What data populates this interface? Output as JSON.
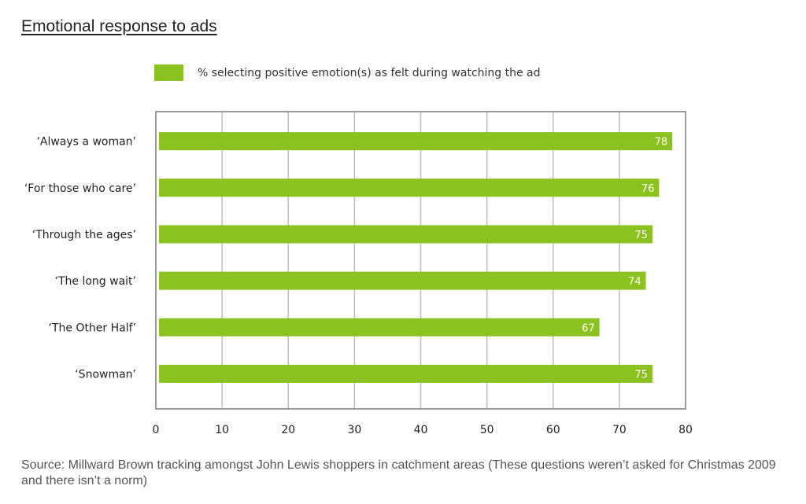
{
  "title": "Emotional response to ads",
  "legend": {
    "label": "% selecting positive emotion(s) as felt during watching the ad"
  },
  "colors": {
    "bar": "#8cc21f",
    "grid": "#bdbdbd",
    "frame": "#9a9a9a"
  },
  "source": "Source: Millward Brown tracking amongst John Lewis shoppers in catchment areas (These questions weren’t asked for Christmas 2009 and there isn’t a norm)",
  "chart_data": {
    "type": "bar",
    "orientation": "horizontal",
    "title": "Emotional response to ads",
    "categories": [
      "‘Always a woman’",
      "‘For those who care’",
      "‘Through the ages’",
      "‘The long wait’",
      "‘The Other Half’",
      "‘Snowman’"
    ],
    "series": [
      {
        "name": "% selecting positive emotion(s) as felt during watching the ad",
        "values": [
          78,
          76,
          75,
          74,
          67,
          75
        ]
      }
    ],
    "xlim": [
      0,
      80
    ],
    "xticks": [
      0,
      10,
      20,
      30,
      40,
      50,
      60,
      70,
      80
    ],
    "grid": true,
    "legend_position": "top"
  }
}
